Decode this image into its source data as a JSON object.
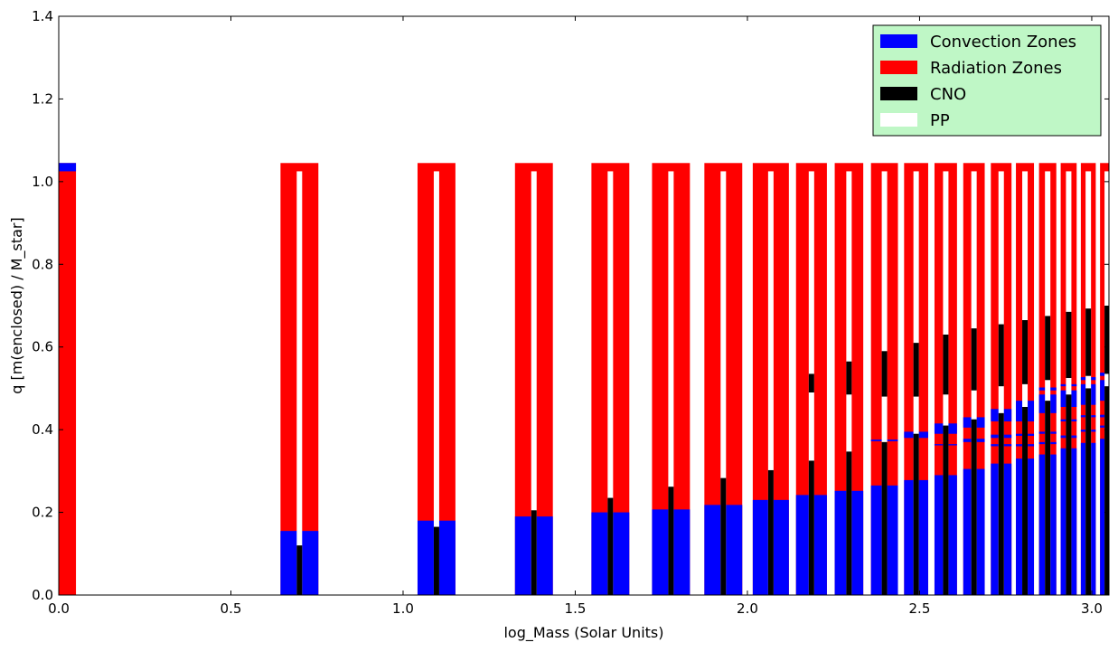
{
  "chart_data": {
    "type": "bar",
    "title": "",
    "xlabel": "log_Mass (Solar Units)",
    "ylabel": "q [m(enclosed) / M_star]",
    "xlim": [
      0.0,
      3.05
    ],
    "ylim": [
      0.0,
      1.4
    ],
    "xticks": [
      "0.0",
      "0.5",
      "1.0",
      "1.5",
      "2.0",
      "2.5",
      "3.0"
    ],
    "yticks": [
      "0.0",
      "0.2",
      "0.4",
      "0.6",
      "0.8",
      "1.0",
      "1.2",
      "1.4"
    ],
    "grid": false,
    "legend_position": "top-right",
    "legend_background": "#bff7c6",
    "series": [
      {
        "name": "Convection Zones",
        "color": "#0000ff"
      },
      {
        "name": "Radiation Zones",
        "color": "#ff0000"
      },
      {
        "name": "CNO",
        "color": "#000000"
      },
      {
        "name": "PP",
        "color": "#ffffff"
      }
    ],
    "bar_top": 1.045,
    "burning_top": 1.025,
    "models": [
      {
        "x": 0.0,
        "convection": [
          [
            1.025,
            1.045
          ]
        ],
        "cno": 0.0
      },
      {
        "x": 0.699,
        "convection": [
          [
            0.0,
            0.155
          ]
        ],
        "cno": 0.12
      },
      {
        "x": 1.097,
        "convection": [
          [
            0.0,
            0.18
          ]
        ],
        "cno": 0.165
      },
      {
        "x": 1.38,
        "convection": [
          [
            0.0,
            0.19
          ]
        ],
        "cno": 0.205
      },
      {
        "x": 1.602,
        "convection": [
          [
            0.0,
            0.2
          ]
        ],
        "cno": 0.235
      },
      {
        "x": 1.778,
        "convection": [
          [
            0.0,
            0.207
          ]
        ],
        "cno": 0.262
      },
      {
        "x": 1.93,
        "convection": [
          [
            0.0,
            0.218
          ]
        ],
        "cno": 0.283
      },
      {
        "x": 2.068,
        "convection": [
          [
            0.0,
            0.23
          ]
        ],
        "cno": 0.302
      },
      {
        "x": 2.186,
        "convection": [
          [
            0.0,
            0.242
          ]
        ],
        "cno": 0.325,
        "cno_band": [
          0.49,
          0.535
        ]
      },
      {
        "x": 2.295,
        "convection": [
          [
            0.0,
            0.252
          ]
        ],
        "cno": 0.347,
        "cno_band": [
          0.485,
          0.565
        ]
      },
      {
        "x": 2.398,
        "convection": [
          [
            0.0,
            0.265
          ],
          [
            0.372,
            0.376
          ]
        ],
        "cno": 0.37,
        "cno_band": [
          0.48,
          0.59
        ]
      },
      {
        "x": 2.49,
        "convection": [
          [
            0.0,
            0.278
          ],
          [
            0.38,
            0.395
          ]
        ],
        "cno": 0.39,
        "cno_band": [
          0.48,
          0.61
        ]
      },
      {
        "x": 2.576,
        "convection": [
          [
            0.0,
            0.29
          ],
          [
            0.362,
            0.365
          ],
          [
            0.39,
            0.415
          ]
        ],
        "cno": 0.41,
        "cno_band": [
          0.485,
          0.63
        ]
      },
      {
        "x": 2.658,
        "convection": [
          [
            0.0,
            0.305
          ],
          [
            0.37,
            0.378
          ],
          [
            0.405,
            0.43
          ]
        ],
        "cno": 0.425,
        "cno_band": [
          0.495,
          0.645
        ]
      },
      {
        "x": 2.737,
        "convection": [
          [
            0.0,
            0.318
          ],
          [
            0.36,
            0.365
          ],
          [
            0.38,
            0.388
          ],
          [
            0.42,
            0.45
          ]
        ],
        "cno": 0.44,
        "cno_band": [
          0.505,
          0.655
        ]
      },
      {
        "x": 2.806,
        "convection": [
          [
            0.0,
            0.33
          ],
          [
            0.36,
            0.365
          ],
          [
            0.385,
            0.39
          ],
          [
            0.42,
            0.47
          ]
        ],
        "cno": 0.455,
        "cno_band": [
          0.51,
          0.665
        ]
      },
      {
        "x": 2.872,
        "convection": [
          [
            0.0,
            0.34
          ],
          [
            0.365,
            0.37
          ],
          [
            0.39,
            0.395
          ],
          [
            0.44,
            0.485
          ],
          [
            0.495,
            0.502
          ]
        ],
        "cno": 0.47,
        "cno_band": [
          0.52,
          0.675
        ]
      },
      {
        "x": 2.933,
        "convection": [
          [
            0.0,
            0.355
          ],
          [
            0.38,
            0.386
          ],
          [
            0.42,
            0.425
          ],
          [
            0.455,
            0.495
          ],
          [
            0.505,
            0.51
          ]
        ],
        "cno": 0.485,
        "cno_band": [
          0.525,
          0.685
        ]
      },
      {
        "x": 2.99,
        "convection": [
          [
            0.0,
            0.368
          ],
          [
            0.395,
            0.4
          ],
          [
            0.43,
            0.435
          ],
          [
            0.46,
            0.51
          ],
          [
            0.52,
            0.527
          ]
        ],
        "cno": 0.5,
        "cno_band": [
          0.53,
          0.693
        ]
      },
      {
        "x": 3.045,
        "convection": [
          [
            0.0,
            0.378
          ],
          [
            0.405,
            0.41
          ],
          [
            0.43,
            0.436
          ],
          [
            0.47,
            0.52
          ],
          [
            0.53,
            0.538
          ]
        ],
        "cno": 0.505,
        "cno_band": [
          0.535,
          0.7
        ]
      }
    ]
  }
}
